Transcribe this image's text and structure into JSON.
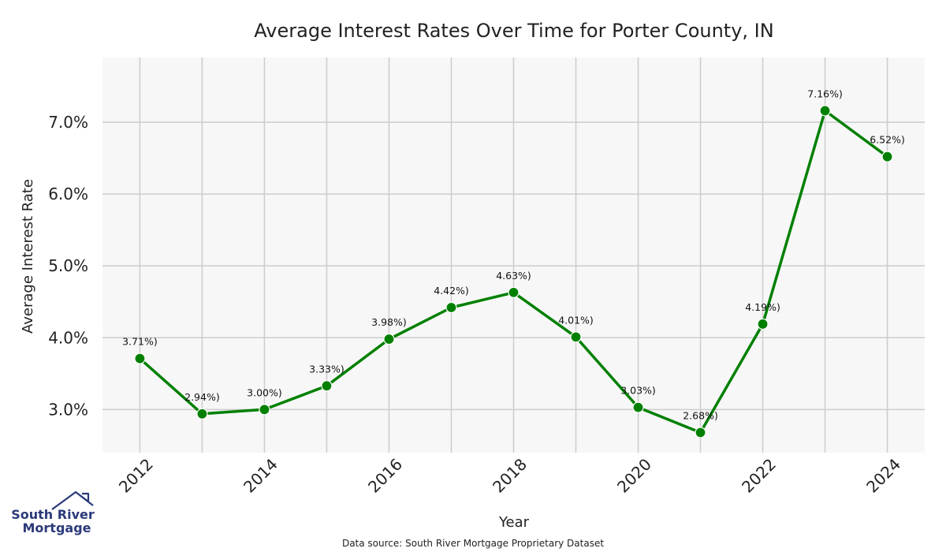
{
  "chart_data": {
    "type": "line",
    "title": "Average Interest Rates Over Time for Porter County, IN",
    "xlabel": "Year",
    "ylabel": "Average Interest Rate",
    "x": [
      2012,
      2013,
      2014,
      2015,
      2016,
      2017,
      2018,
      2019,
      2020,
      2021,
      2022,
      2023,
      2024
    ],
    "series": [
      {
        "values": [
          3.71,
          2.94,
          3.0,
          3.33,
          3.98,
          4.42,
          4.63,
          4.01,
          3.03,
          2.68,
          4.19,
          7.16,
          6.52
        ],
        "data_labels": [
          "3.71%)",
          "2.94%)",
          "3.00%)",
          "3.33%)",
          "3.98%)",
          "4.42%)",
          "4.63%)",
          "4.01%)",
          "3.03%)",
          "2.68%)",
          "4.19%)",
          "7.16%)",
          "6.52%)"
        ]
      }
    ],
    "xlim": [
      2011.4,
      2024.6
    ],
    "ylim": [
      2.4,
      7.9
    ],
    "xticks": [
      2012,
      2014,
      2016,
      2018,
      2020,
      2022,
      2024
    ],
    "xtick_labels": [
      "2012",
      "2014",
      "2016",
      "2018",
      "2020",
      "2022",
      "2024"
    ],
    "yticks": [
      3.0,
      4.0,
      5.0,
      6.0,
      7.0
    ],
    "ytick_labels": [
      "3.0%",
      "4.0%",
      "5.0%",
      "6.0%",
      "7.0%"
    ],
    "grid": true,
    "colors": {
      "line": "#008000",
      "plot_bg": "#f7f7f7",
      "grid": "#cccccc"
    }
  },
  "footer": {
    "source": "Data source: South River Mortgage Proprietary Dataset"
  },
  "logo": {
    "line1": "South River",
    "line2": "Mortgage",
    "color": "#2b3a7a"
  }
}
